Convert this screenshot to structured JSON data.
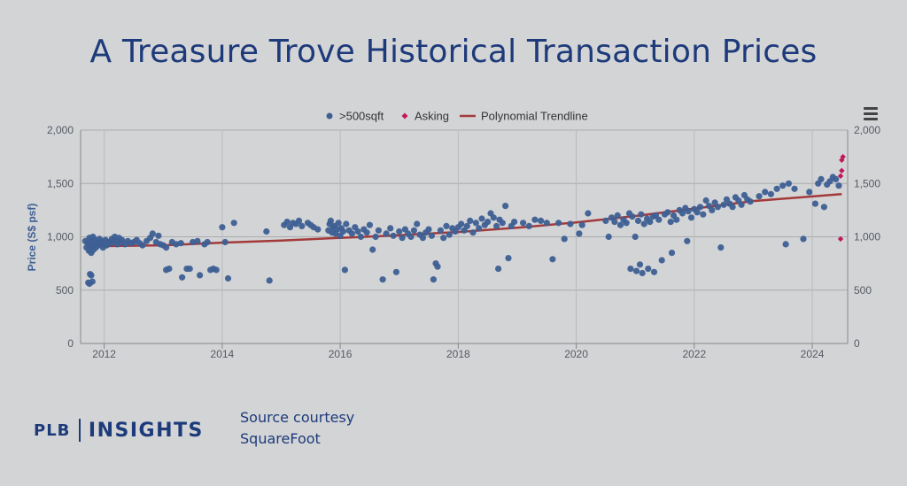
{
  "title": "A Treasure Trove Historical Transaction Prices",
  "source": {
    "line1": "Source courtesy",
    "line2": "SquareFoot"
  },
  "logo": {
    "left": "PLB",
    "right": "INSIGHTS"
  },
  "menu_icon": "hamburger-menu-icon",
  "colors": {
    "transactions": "#3e5f93",
    "asking": "#c2185b",
    "trend": "#a33a3a",
    "title": "#1d3a7a"
  },
  "chart_data": {
    "type": "scatter",
    "xlim": [
      2011.6,
      2024.6
    ],
    "ylim": [
      0,
      2000
    ],
    "x_ticks": [
      2012,
      2014,
      2016,
      2018,
      2020,
      2022,
      2024
    ],
    "y_ticks": [
      0,
      500,
      1000,
      1500,
      2000
    ],
    "y_tick_labels": [
      "0",
      "500",
      "1,000",
      "1,500",
      "2,000"
    ],
    "ylabel": "Price (S$ psf)",
    "xlabel": "",
    "grid": true,
    "secondary_y_axis": true,
    "legend_position": "top-center",
    "series": [
      {
        "name": ">500sqft",
        "marker": "circle",
        "points": [
          [
            2011.68,
            960
          ],
          [
            2011.7,
            900
          ],
          [
            2011.72,
            940
          ],
          [
            2011.74,
            870
          ],
          [
            2011.75,
            990
          ],
          [
            2011.76,
            920
          ],
          [
            2011.78,
            850
          ],
          [
            2011.79,
            960
          ],
          [
            2011.8,
            910
          ],
          [
            2011.81,
            1000
          ],
          [
            2011.82,
            880
          ],
          [
            2011.83,
            940
          ],
          [
            2011.85,
            970
          ],
          [
            2011.86,
            900
          ],
          [
            2011.88,
            950
          ],
          [
            2011.9,
            920
          ],
          [
            2011.92,
            980
          ],
          [
            2011.94,
            930
          ],
          [
            2011.96,
            960
          ],
          [
            2011.98,
            900
          ],
          [
            2012.0,
            940
          ],
          [
            2012.02,
            970
          ],
          [
            2012.04,
            920
          ],
          [
            2012.07,
            950
          ],
          [
            2011.73,
            570
          ],
          [
            2011.75,
            560
          ],
          [
            2011.76,
            650
          ],
          [
            2011.78,
            640
          ],
          [
            2011.8,
            580
          ],
          [
            2012.1,
            940
          ],
          [
            2012.13,
            980
          ],
          [
            2012.15,
            950
          ],
          [
            2012.18,
            1000
          ],
          [
            2012.2,
            960
          ],
          [
            2012.22,
            930
          ],
          [
            2012.25,
            990
          ],
          [
            2012.28,
            950
          ],
          [
            2012.3,
            970
          ],
          [
            2012.35,
            930
          ],
          [
            2012.4,
            960
          ],
          [
            2012.45,
            940
          ],
          [
            2012.5,
            950
          ],
          [
            2012.55,
            970
          ],
          [
            2012.6,
            940
          ],
          [
            2012.65,
            920
          ],
          [
            2012.72,
            960
          ],
          [
            2012.78,
            990
          ],
          [
            2012.82,
            1030
          ],
          [
            2012.88,
            950
          ],
          [
            2012.92,
            1010
          ],
          [
            2012.95,
            930
          ],
          [
            2013.0,
            920
          ],
          [
            2013.05,
            900
          ],
          [
            2013.05,
            690
          ],
          [
            2013.1,
            700
          ],
          [
            2013.15,
            950
          ],
          [
            2013.22,
            930
          ],
          [
            2013.3,
            940
          ],
          [
            2013.32,
            620
          ],
          [
            2013.4,
            700
          ],
          [
            2013.45,
            700
          ],
          [
            2013.5,
            950
          ],
          [
            2013.58,
            960
          ],
          [
            2013.62,
            640
          ],
          [
            2013.7,
            930
          ],
          [
            2013.75,
            950
          ],
          [
            2013.8,
            690
          ],
          [
            2013.85,
            700
          ],
          [
            2013.9,
            690
          ],
          [
            2014.0,
            1090
          ],
          [
            2014.05,
            950
          ],
          [
            2014.1,
            610
          ],
          [
            2014.2,
            1130
          ],
          [
            2014.75,
            1050
          ],
          [
            2014.8,
            590
          ],
          [
            2015.05,
            1110
          ],
          [
            2015.1,
            1140
          ],
          [
            2015.15,
            1090
          ],
          [
            2015.2,
            1130
          ],
          [
            2015.25,
            1120
          ],
          [
            2015.3,
            1150
          ],
          [
            2015.35,
            1100
          ],
          [
            2015.45,
            1130
          ],
          [
            2015.5,
            1110
          ],
          [
            2015.55,
            1090
          ],
          [
            2015.62,
            1070
          ],
          [
            2015.8,
            1060
          ],
          [
            2015.82,
            1120
          ],
          [
            2015.84,
            1150
          ],
          [
            2015.86,
            1040
          ],
          [
            2015.88,
            1090
          ],
          [
            2015.9,
            1100
          ],
          [
            2015.92,
            1030
          ],
          [
            2015.95,
            1070
          ],
          [
            2015.97,
            1130
          ],
          [
            2016.0,
            1010
          ],
          [
            2016.02,
            1080
          ],
          [
            2016.05,
            1050
          ],
          [
            2016.08,
            690
          ],
          [
            2016.1,
            1120
          ],
          [
            2016.15,
            1060
          ],
          [
            2016.2,
            1030
          ],
          [
            2016.25,
            1090
          ],
          [
            2016.3,
            1050
          ],
          [
            2016.35,
            1000
          ],
          [
            2016.4,
            1070
          ],
          [
            2016.45,
            1040
          ],
          [
            2016.5,
            1110
          ],
          [
            2016.55,
            880
          ],
          [
            2016.6,
            1000
          ],
          [
            2016.65,
            1060
          ],
          [
            2016.72,
            600
          ],
          [
            2016.78,
            1030
          ],
          [
            2016.85,
            1080
          ],
          [
            2016.9,
            1010
          ],
          [
            2016.95,
            670
          ],
          [
            2017.0,
            1050
          ],
          [
            2017.05,
            990
          ],
          [
            2017.1,
            1070
          ],
          [
            2017.15,
            1030
          ],
          [
            2017.2,
            1000
          ],
          [
            2017.25,
            1060
          ],
          [
            2017.3,
            1120
          ],
          [
            2017.35,
            1020
          ],
          [
            2017.4,
            990
          ],
          [
            2017.45,
            1040
          ],
          [
            2017.5,
            1070
          ],
          [
            2017.55,
            1010
          ],
          [
            2017.58,
            600
          ],
          [
            2017.62,
            750
          ],
          [
            2017.65,
            720
          ],
          [
            2017.7,
            1060
          ],
          [
            2017.75,
            990
          ],
          [
            2017.8,
            1100
          ],
          [
            2017.85,
            1020
          ],
          [
            2017.9,
            1080
          ],
          [
            2017.95,
            1050
          ],
          [
            2018.0,
            1090
          ],
          [
            2018.05,
            1120
          ],
          [
            2018.1,
            1060
          ],
          [
            2018.15,
            1100
          ],
          [
            2018.2,
            1150
          ],
          [
            2018.25,
            1040
          ],
          [
            2018.3,
            1130
          ],
          [
            2018.35,
            1080
          ],
          [
            2018.4,
            1170
          ],
          [
            2018.45,
            1110
          ],
          [
            2018.5,
            1140
          ],
          [
            2018.55,
            1220
          ],
          [
            2018.6,
            1180
          ],
          [
            2018.65,
            1100
          ],
          [
            2018.68,
            700
          ],
          [
            2018.7,
            1160
          ],
          [
            2018.75,
            1130
          ],
          [
            2018.8,
            1290
          ],
          [
            2018.85,
            800
          ],
          [
            2018.9,
            1100
          ],
          [
            2018.95,
            1140
          ],
          [
            2019.1,
            1130
          ],
          [
            2019.2,
            1100
          ],
          [
            2019.3,
            1160
          ],
          [
            2019.4,
            1150
          ],
          [
            2019.5,
            1130
          ],
          [
            2019.6,
            790
          ],
          [
            2019.7,
            1130
          ],
          [
            2019.8,
            980
          ],
          [
            2019.9,
            1120
          ],
          [
            2020.05,
            1030
          ],
          [
            2020.1,
            1110
          ],
          [
            2020.2,
            1220
          ],
          [
            2020.5,
            1150
          ],
          [
            2020.55,
            1000
          ],
          [
            2020.6,
            1180
          ],
          [
            2020.65,
            1140
          ],
          [
            2020.7,
            1200
          ],
          [
            2020.75,
            1110
          ],
          [
            2020.8,
            1160
          ],
          [
            2020.85,
            1130
          ],
          [
            2020.9,
            1220
          ],
          [
            2020.92,
            700
          ],
          [
            2020.95,
            1190
          ],
          [
            2021.0,
            1000
          ],
          [
            2021.02,
            680
          ],
          [
            2021.05,
            1150
          ],
          [
            2021.08,
            740
          ],
          [
            2021.1,
            1210
          ],
          [
            2021.12,
            660
          ],
          [
            2021.15,
            1120
          ],
          [
            2021.2,
            1170
          ],
          [
            2021.22,
            700
          ],
          [
            2021.25,
            1140
          ],
          [
            2021.3,
            1190
          ],
          [
            2021.32,
            670
          ],
          [
            2021.35,
            1200
          ],
          [
            2021.4,
            1160
          ],
          [
            2021.45,
            780
          ],
          [
            2021.5,
            1210
          ],
          [
            2021.55,
            1230
          ],
          [
            2021.6,
            1140
          ],
          [
            2021.62,
            850
          ],
          [
            2021.65,
            1200
          ],
          [
            2021.7,
            1160
          ],
          [
            2021.75,
            1250
          ],
          [
            2021.8,
            1220
          ],
          [
            2021.85,
            1270
          ],
          [
            2021.88,
            960
          ],
          [
            2021.9,
            1240
          ],
          [
            2021.95,
            1180
          ],
          [
            2022.0,
            1260
          ],
          [
            2022.05,
            1230
          ],
          [
            2022.1,
            1280
          ],
          [
            2022.15,
            1210
          ],
          [
            2022.2,
            1340
          ],
          [
            2022.25,
            1290
          ],
          [
            2022.3,
            1250
          ],
          [
            2022.35,
            1320
          ],
          [
            2022.4,
            1280
          ],
          [
            2022.45,
            900
          ],
          [
            2022.5,
            1300
          ],
          [
            2022.55,
            1350
          ],
          [
            2022.6,
            1310
          ],
          [
            2022.65,
            1280
          ],
          [
            2022.7,
            1370
          ],
          [
            2022.75,
            1340
          ],
          [
            2022.8,
            1300
          ],
          [
            2022.85,
            1390
          ],
          [
            2022.9,
            1350
          ],
          [
            2022.95,
            1330
          ],
          [
            2023.1,
            1380
          ],
          [
            2023.2,
            1420
          ],
          [
            2023.3,
            1400
          ],
          [
            2023.4,
            1450
          ],
          [
            2023.5,
            1480
          ],
          [
            2023.55,
            930
          ],
          [
            2023.6,
            1500
          ],
          [
            2023.7,
            1450
          ],
          [
            2023.85,
            980
          ],
          [
            2023.95,
            1420
          ],
          [
            2024.05,
            1310
          ],
          [
            2024.1,
            1500
          ],
          [
            2024.15,
            1540
          ],
          [
            2024.2,
            1280
          ],
          [
            2024.25,
            1490
          ],
          [
            2024.3,
            1520
          ],
          [
            2024.35,
            1560
          ],
          [
            2024.4,
            1540
          ],
          [
            2024.45,
            1480
          ]
        ]
      },
      {
        "name": "Asking",
        "marker": "diamond",
        "points": [
          [
            2024.5,
            1720
          ],
          [
            2024.52,
            1750
          ],
          [
            2024.5,
            1620
          ],
          [
            2024.48,
            1570
          ],
          [
            2024.48,
            980
          ]
        ]
      },
      {
        "name": "Polynomial Trendline",
        "type": "line",
        "points": [
          [
            2011.7,
            910
          ],
          [
            2013,
            920
          ],
          [
            2014,
            945
          ],
          [
            2015,
            965
          ],
          [
            2016,
            990
          ],
          [
            2017,
            1015
          ],
          [
            2018,
            1045
          ],
          [
            2019,
            1085
          ],
          [
            2020,
            1135
          ],
          [
            2021,
            1195
          ],
          [
            2022,
            1265
          ],
          [
            2023,
            1335
          ],
          [
            2024.5,
            1400
          ]
        ]
      }
    ]
  }
}
